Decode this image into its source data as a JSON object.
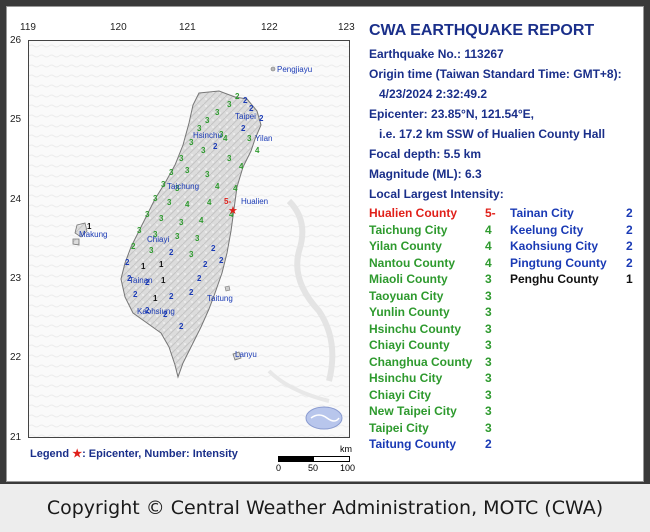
{
  "report": {
    "title": "CWA EARTHQUAKE REPORT",
    "number": "Earthquake No.: 113267",
    "origin": "Origin time (Taiwan Standard Time: GMT+8):",
    "datetime": "4/23/2024  2:32:49.2",
    "epicenter": "Epicenter: 23.85°N, 121.54°E,",
    "location": "i.e. 17.2 km SSW of Hualien County Hall",
    "depth": "Focal depth: 5.5 km",
    "magnitude": "Magnitude (ML): 6.3",
    "intensity_header": "Local Largest Intensity:"
  },
  "intensities_left": [
    {
      "name": "Hualien County",
      "value": "5-",
      "color": "#e0201a"
    },
    {
      "name": "Taichung City",
      "value": "4",
      "color": "#2e9a2e"
    },
    {
      "name": "Yilan County",
      "value": "4",
      "color": "#2e9a2e"
    },
    {
      "name": "Nantou County",
      "value": "4",
      "color": "#2e9a2e"
    },
    {
      "name": "Miaoli County",
      "value": "3",
      "color": "#2e9a2e"
    },
    {
      "name": "Taoyuan City",
      "value": "3",
      "color": "#2e9a2e"
    },
    {
      "name": "Yunlin County",
      "value": "3",
      "color": "#2e9a2e"
    },
    {
      "name": "Hsinchu County",
      "value": "3",
      "color": "#2e9a2e"
    },
    {
      "name": "Chiayi County",
      "value": "3",
      "color": "#2e9a2e"
    },
    {
      "name": "Changhua County",
      "value": "3",
      "color": "#2e9a2e"
    },
    {
      "name": "Hsinchu City",
      "value": "3",
      "color": "#2e9a2e"
    },
    {
      "name": "Chiayi City",
      "value": "3",
      "color": "#2e9a2e"
    },
    {
      "name": "New Taipei City",
      "value": "3",
      "color": "#2e9a2e"
    },
    {
      "name": "Taipei City",
      "value": "3",
      "color": "#2e9a2e"
    },
    {
      "name": "Taitung County",
      "value": "2",
      "color": "#1a3ab5"
    }
  ],
  "intensities_right": [
    {
      "name": "Tainan City",
      "value": "2",
      "color": "#1a3ab5"
    },
    {
      "name": "Keelung City",
      "value": "2",
      "color": "#1a3ab5"
    },
    {
      "name": "Kaohsiung City",
      "value": "2",
      "color": "#1a3ab5"
    },
    {
      "name": "Pingtung County",
      "value": "2",
      "color": "#1a3ab5"
    },
    {
      "name": "Penghu County",
      "value": "1",
      "color": "#111111"
    }
  ],
  "map": {
    "lon_ticks": [
      "119",
      "120",
      "121",
      "122",
      "123"
    ],
    "lat_ticks": [
      "26",
      "25",
      "24",
      "23",
      "22",
      "21"
    ],
    "places": {
      "pengjiayu": "Pengjiayu",
      "taipei": "Taipei",
      "hsinchu": "Hsinchu",
      "yilan": "Yilan",
      "taichung": "Taichung",
      "hualien": "Hualien",
      "makung": "Makung",
      "chiayi": "Chiayi",
      "tainan": "Tainan",
      "taitung": "Taitung",
      "kaohsiung": "Kaohsiung",
      "lanyu": "Lanyu"
    },
    "epicenter_label": "5-",
    "scale_unit": "km",
    "scale_ticks": [
      "0",
      "50",
      "100"
    ]
  },
  "legend": {
    "label": "Legend",
    "star": "★",
    "text": ": Epicenter, Number: Intensity"
  },
  "footer": "Copyright © Central Weather Administration, MOTC (CWA)",
  "colors": {
    "int5": "#e0201a",
    "int4": "#2e9a2e",
    "int3": "#2e9a2e",
    "int2": "#1a3ab5",
    "int1": "#111111",
    "title": "#1a2f8a"
  }
}
